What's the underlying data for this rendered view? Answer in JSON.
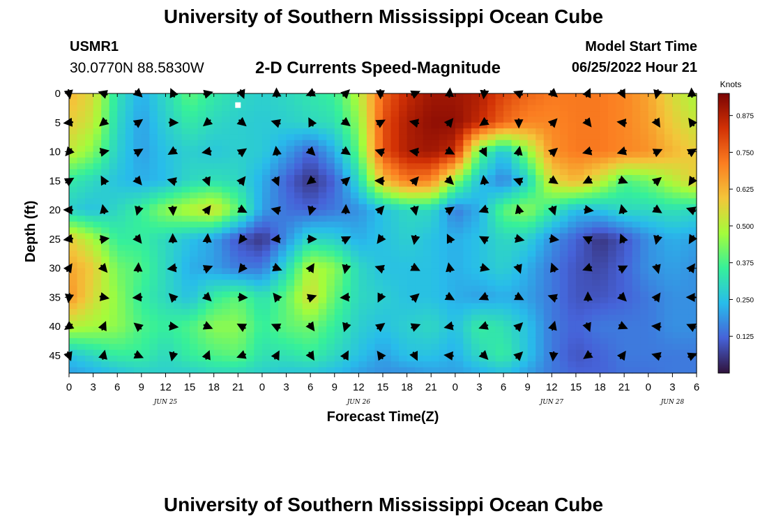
{
  "header": {
    "title": "University of Southern Mississippi Ocean Cube",
    "station_id": "USMR1",
    "station_coords": "30.0770N  88.5830W",
    "product": "2-D Currents Speed-Magnitude",
    "start_label": "Model Start Time",
    "start_value": "06/25/2022 Hour 21"
  },
  "footer": {
    "title": "University of Southern Mississippi Ocean Cube"
  },
  "colors": {
    "scale": [
      "#30123b",
      "#4662d8",
      "#28bceb",
      "#36f09a",
      "#a4fc3b",
      "#f3c63a",
      "#fb7e21",
      "#d23105",
      "#7a0403"
    ]
  },
  "chart_data": {
    "type": "heatmap",
    "xlabel": "Forecast Time(Z)",
    "ylabel": "Depth (ft)",
    "x_tick_labels": [
      "0",
      "3",
      "6",
      "9",
      "12",
      "15",
      "18",
      "21",
      "0",
      "3",
      "6",
      "9",
      "12",
      "15",
      "18",
      "21",
      "0",
      "3",
      "6",
      "9",
      "12",
      "15",
      "18",
      "21",
      "0",
      "3",
      "6"
    ],
    "date_labels": [
      {
        "label": "JUN 25",
        "hour": 12
      },
      {
        "label": "JUN 26",
        "hour": 36
      },
      {
        "label": "JUN 27",
        "hour": 60
      },
      {
        "label": "JUN 28",
        "hour": 75
      }
    ],
    "xlim": [
      0,
      78
    ],
    "y_ticks": [
      0,
      5,
      10,
      15,
      20,
      25,
      30,
      35,
      40,
      45
    ],
    "ylim": [
      0,
      48
    ],
    "colorbar": {
      "label": "Knots",
      "range": [
        0.0,
        0.95
      ],
      "ticks": [
        "0.875",
        "0.750",
        "0.625",
        "0.500",
        "0.375",
        "0.250",
        "0.125"
      ],
      "tick_values": [
        0.875,
        0.75,
        0.625,
        0.5,
        0.375,
        0.25,
        0.125
      ]
    },
    "grid_hours": [
      0,
      3,
      6,
      9,
      12,
      15,
      18,
      21,
      24,
      27,
      30,
      33,
      36,
      39,
      42,
      45,
      48,
      51,
      54,
      57,
      60,
      63,
      66,
      69,
      72,
      75,
      78
    ],
    "grid_depths": [
      0,
      5,
      10,
      15,
      20,
      25,
      30,
      35,
      40,
      45,
      48
    ],
    "speed_knots": [
      [
        0.62,
        0.55,
        0.32,
        0.22,
        0.3,
        0.4,
        0.34,
        0.3,
        0.28,
        0.3,
        0.33,
        0.36,
        0.5,
        0.75,
        0.85,
        0.9,
        0.9,
        0.88,
        0.8,
        0.75,
        0.72,
        0.72,
        0.72,
        0.7,
        0.65,
        0.55,
        0.48
      ],
      [
        0.58,
        0.52,
        0.3,
        0.2,
        0.28,
        0.34,
        0.3,
        0.28,
        0.27,
        0.28,
        0.3,
        0.32,
        0.45,
        0.78,
        0.88,
        0.92,
        0.92,
        0.85,
        0.75,
        0.7,
        0.7,
        0.72,
        0.72,
        0.7,
        0.66,
        0.58,
        0.52
      ],
      [
        0.52,
        0.44,
        0.28,
        0.2,
        0.25,
        0.28,
        0.26,
        0.28,
        0.27,
        0.2,
        0.12,
        0.22,
        0.4,
        0.78,
        0.88,
        0.9,
        0.85,
        0.4,
        0.25,
        0.45,
        0.68,
        0.72,
        0.72,
        0.7,
        0.68,
        0.62,
        0.58
      ],
      [
        0.34,
        0.3,
        0.25,
        0.22,
        0.24,
        0.3,
        0.32,
        0.3,
        0.22,
        0.12,
        0.05,
        0.12,
        0.3,
        0.6,
        0.72,
        0.7,
        0.45,
        0.25,
        0.16,
        0.28,
        0.55,
        0.62,
        0.52,
        0.38,
        0.42,
        0.5,
        0.58
      ],
      [
        0.28,
        0.25,
        0.3,
        0.36,
        0.45,
        0.5,
        0.55,
        0.4,
        0.2,
        0.14,
        0.12,
        0.15,
        0.18,
        0.25,
        0.3,
        0.3,
        0.15,
        0.22,
        0.4,
        0.45,
        0.34,
        0.24,
        0.25,
        0.3,
        0.3,
        0.32,
        0.3
      ],
      [
        0.58,
        0.48,
        0.35,
        0.35,
        0.3,
        0.25,
        0.2,
        0.1,
        0.05,
        0.18,
        0.3,
        0.28,
        0.22,
        0.25,
        0.28,
        0.25,
        0.22,
        0.25,
        0.3,
        0.28,
        0.18,
        0.12,
        0.05,
        0.1,
        0.18,
        0.22,
        0.2
      ],
      [
        0.65,
        0.58,
        0.42,
        0.38,
        0.3,
        0.22,
        0.2,
        0.15,
        0.15,
        0.3,
        0.5,
        0.45,
        0.3,
        0.25,
        0.25,
        0.25,
        0.22,
        0.25,
        0.28,
        0.22,
        0.15,
        0.1,
        0.08,
        0.12,
        0.18,
        0.2,
        0.18
      ],
      [
        0.68,
        0.55,
        0.45,
        0.35,
        0.3,
        0.25,
        0.35,
        0.4,
        0.32,
        0.4,
        0.55,
        0.4,
        0.3,
        0.28,
        0.25,
        0.25,
        0.22,
        0.2,
        0.22,
        0.2,
        0.15,
        0.1,
        0.1,
        0.12,
        0.15,
        0.18,
        0.18
      ],
      [
        0.5,
        0.48,
        0.45,
        0.38,
        0.35,
        0.38,
        0.45,
        0.45,
        0.35,
        0.4,
        0.42,
        0.35,
        0.28,
        0.25,
        0.28,
        0.3,
        0.25,
        0.35,
        0.32,
        0.25,
        0.15,
        0.12,
        0.15,
        0.15,
        0.15,
        0.18,
        0.18
      ],
      [
        0.25,
        0.3,
        0.35,
        0.35,
        0.3,
        0.35,
        0.38,
        0.4,
        0.32,
        0.32,
        0.35,
        0.3,
        0.25,
        0.2,
        0.25,
        0.25,
        0.22,
        0.3,
        0.35,
        0.25,
        0.15,
        0.1,
        0.12,
        0.15,
        0.15,
        0.15,
        0.15
      ],
      [
        0.2,
        0.22,
        0.25,
        0.28,
        0.28,
        0.28,
        0.3,
        0.3,
        0.28,
        0.26,
        0.26,
        0.24,
        0.2,
        0.18,
        0.18,
        0.2,
        0.2,
        0.22,
        0.25,
        0.2,
        0.15,
        0.12,
        0.12,
        0.14,
        0.14,
        0.15,
        0.15
      ]
    ],
    "highlight_marker": {
      "hour": 21,
      "depth": 2
    }
  }
}
